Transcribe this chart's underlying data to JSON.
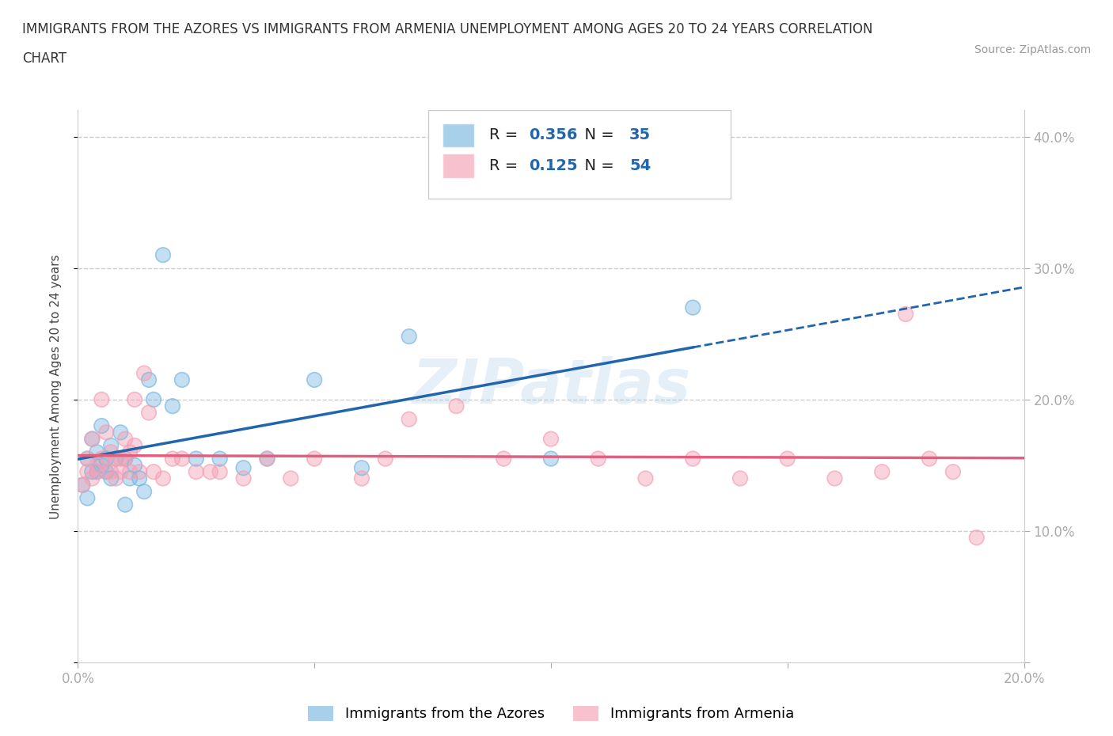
{
  "title_line1": "IMMIGRANTS FROM THE AZORES VS IMMIGRANTS FROM ARMENIA UNEMPLOYMENT AMONG AGES 20 TO 24 YEARS CORRELATION",
  "title_line2": "CHART",
  "source": "Source: ZipAtlas.com",
  "ylabel": "Unemployment Among Ages 20 to 24 years",
  "xlim": [
    0.0,
    0.2
  ],
  "ylim": [
    0.0,
    0.42
  ],
  "xticks": [
    0.0,
    0.05,
    0.1,
    0.15,
    0.2
  ],
  "xticklabels": [
    "0.0%",
    "",
    "",
    "",
    "20.0%"
  ],
  "yticks": [
    0.0,
    0.1,
    0.2,
    0.3,
    0.4
  ],
  "yticklabels": [
    "",
    "10.0%",
    "20.0%",
    "30.0%",
    "40.0%"
  ],
  "azores_color": "#7ab8e0",
  "armenia_color": "#f4a0b5",
  "azores_R": 0.356,
  "azores_N": 35,
  "armenia_R": 0.125,
  "armenia_N": 54,
  "azores_line_color": "#2166ac",
  "armenia_line_color": "#e06080",
  "background_color": "#ffffff",
  "azores_x": [
    0.001,
    0.002,
    0.002,
    0.003,
    0.003,
    0.004,
    0.004,
    0.005,
    0.005,
    0.006,
    0.006,
    0.007,
    0.007,
    0.008,
    0.009,
    0.01,
    0.01,
    0.011,
    0.012,
    0.013,
    0.014,
    0.015,
    0.016,
    0.018,
    0.02,
    0.022,
    0.025,
    0.03,
    0.035,
    0.04,
    0.05,
    0.06,
    0.07,
    0.1,
    0.13
  ],
  "azores_y": [
    0.135,
    0.125,
    0.155,
    0.145,
    0.17,
    0.145,
    0.16,
    0.18,
    0.15,
    0.145,
    0.155,
    0.165,
    0.14,
    0.155,
    0.175,
    0.155,
    0.12,
    0.14,
    0.15,
    0.14,
    0.13,
    0.215,
    0.2,
    0.31,
    0.195,
    0.215,
    0.155,
    0.155,
    0.148,
    0.155,
    0.215,
    0.148,
    0.248,
    0.155,
    0.27
  ],
  "armenia_x": [
    0.001,
    0.002,
    0.002,
    0.003,
    0.003,
    0.004,
    0.004,
    0.005,
    0.005,
    0.006,
    0.006,
    0.007,
    0.007,
    0.008,
    0.008,
    0.009,
    0.009,
    0.01,
    0.01,
    0.011,
    0.011,
    0.012,
    0.012,
    0.013,
    0.014,
    0.015,
    0.016,
    0.018,
    0.02,
    0.022,
    0.025,
    0.028,
    0.03,
    0.035,
    0.04,
    0.045,
    0.05,
    0.06,
    0.065,
    0.07,
    0.08,
    0.09,
    0.1,
    0.11,
    0.12,
    0.13,
    0.14,
    0.15,
    0.16,
    0.17,
    0.175,
    0.18,
    0.185,
    0.19
  ],
  "armenia_y": [
    0.135,
    0.145,
    0.155,
    0.17,
    0.14,
    0.145,
    0.15,
    0.2,
    0.155,
    0.145,
    0.175,
    0.16,
    0.145,
    0.155,
    0.14,
    0.145,
    0.155,
    0.17,
    0.155,
    0.145,
    0.16,
    0.165,
    0.2,
    0.145,
    0.22,
    0.19,
    0.145,
    0.14,
    0.155,
    0.155,
    0.145,
    0.145,
    0.145,
    0.14,
    0.155,
    0.14,
    0.155,
    0.14,
    0.155,
    0.185,
    0.195,
    0.155,
    0.17,
    0.155,
    0.14,
    0.155,
    0.14,
    0.155,
    0.14,
    0.145,
    0.265,
    0.155,
    0.145,
    0.095
  ]
}
